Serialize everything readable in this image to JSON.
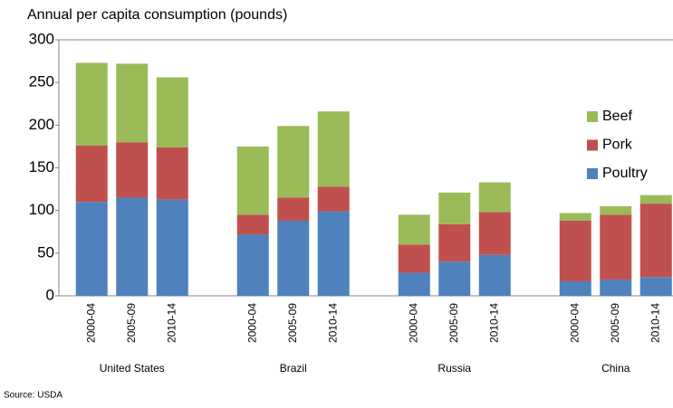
{
  "chart_data": {
    "type": "stacked-bar",
    "title": "Annual per capita consumption (pounds)",
    "source": "Source: USDA",
    "groups": [
      "United States",
      "Brazil",
      "Russia",
      "China"
    ],
    "categories": [
      "2000-04",
      "2005-09",
      "2010-14",
      "2000-04",
      "2005-09",
      "2010-14",
      "2000-04",
      "2005-09",
      "2010-14",
      "2000-04",
      "2005-09",
      "2010-14"
    ],
    "series": [
      {
        "name": "Poultry",
        "color": "#4f81bd",
        "values": [
          110,
          115,
          113,
          72,
          88,
          99,
          27,
          40,
          48,
          17,
          19,
          22
        ]
      },
      {
        "name": "Pork",
        "color": "#c0504d",
        "values": [
          66,
          65,
          61,
          23,
          27,
          29,
          33,
          44,
          50,
          71,
          76,
          86
        ]
      },
      {
        "name": "Beef",
        "color": "#9bbb59",
        "values": [
          97,
          92,
          82,
          80,
          84,
          88,
          35,
          37,
          35,
          9,
          10,
          10
        ]
      }
    ],
    "ylim": [
      0,
      300
    ],
    "yticks": [
      0,
      50,
      100,
      150,
      200,
      250,
      300
    ],
    "grid": false,
    "legend": "right"
  }
}
